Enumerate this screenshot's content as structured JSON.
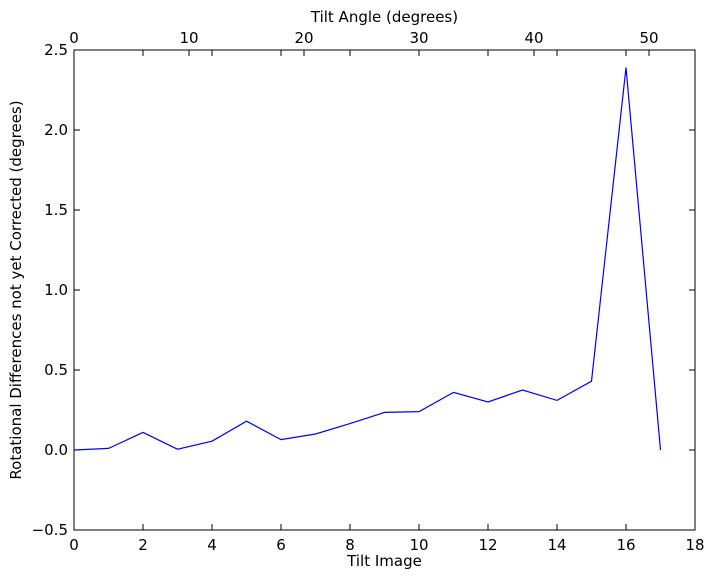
{
  "chart_data": {
    "type": "line",
    "title": "",
    "xlabel": "Tilt Image",
    "ylabel": "Rotational Differences not yet Corrected (degrees)",
    "top_xlabel": "Tilt Angle (degrees)",
    "xlim": [
      0,
      18
    ],
    "ylim": [
      -0.5,
      2.5
    ],
    "top_xlim": [
      0,
      54
    ],
    "xticks": [
      0,
      2,
      4,
      6,
      8,
      10,
      12,
      14,
      16,
      18
    ],
    "xtick_labels": [
      "0",
      "2",
      "4",
      "6",
      "8",
      "10",
      "12",
      "14",
      "16",
      "18"
    ],
    "yticks": [
      -0.5,
      0.0,
      0.5,
      1.0,
      1.5,
      2.0,
      2.5
    ],
    "ytick_labels": [
      "−0.5",
      "0.0",
      "0.5",
      "1.0",
      "1.5",
      "2.0",
      "2.5"
    ],
    "top_xticks": [
      0,
      10,
      20,
      30,
      40,
      50
    ],
    "top_xtick_labels": [
      "0",
      "10",
      "20",
      "30",
      "40",
      "50"
    ],
    "grid": false,
    "series": [
      {
        "color": "#0000ff",
        "x": [
          0,
          1,
          2,
          3,
          4,
          5,
          6,
          7,
          8,
          9,
          10,
          11,
          12,
          13,
          14,
          15,
          16,
          17
        ],
        "y": [
          0.0,
          0.01,
          0.11,
          0.005,
          0.055,
          0.18,
          0.065,
          0.1,
          0.165,
          0.235,
          0.24,
          0.36,
          0.3,
          0.375,
          0.31,
          0.43,
          2.39,
          0.0
        ]
      }
    ]
  }
}
